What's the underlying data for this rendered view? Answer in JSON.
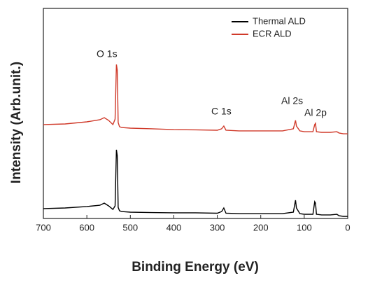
{
  "chart_data": {
    "type": "line",
    "x_label": "Binding Energy (eV)",
    "y_label": "Intensity (Arb.unit.)",
    "x": [
      700,
      650,
      600,
      570,
      560,
      550,
      540,
      535,
      532,
      530,
      528,
      525,
      520,
      500,
      450,
      400,
      350,
      300,
      290,
      285,
      280,
      250,
      200,
      150,
      125,
      120,
      118,
      110,
      100,
      80,
      76,
      74,
      72,
      60,
      40,
      25,
      20,
      10,
      0
    ],
    "series": [
      {
        "name": "Thermal ALD",
        "color": "#000000",
        "values": [
          4.7,
          5.0,
          5.7,
          6.3,
          7.3,
          6.0,
          4.3,
          6.0,
          32.7,
          30.0,
          5.3,
          3.7,
          3.3,
          3.0,
          2.8,
          2.7,
          2.7,
          2.5,
          3.3,
          5.0,
          2.5,
          2.3,
          2.3,
          2.3,
          3.0,
          8.7,
          5.0,
          2.3,
          2.0,
          2.0,
          8.0,
          7.3,
          2.0,
          1.7,
          1.7,
          2.0,
          1.3,
          1.0,
          1.0
        ]
      },
      {
        "name": "ECR ALD",
        "color": "#d03a2a",
        "values": [
          44.7,
          45.0,
          46.0,
          47.0,
          48.0,
          46.7,
          44.7,
          47.3,
          73.3,
          70.7,
          45.7,
          43.7,
          43.3,
          43.0,
          42.7,
          42.3,
          42.2,
          42.0,
          42.7,
          44.0,
          42.0,
          41.7,
          41.7,
          41.7,
          42.7,
          46.7,
          44.0,
          41.7,
          41.3,
          41.3,
          44.7,
          45.3,
          41.3,
          41.0,
          41.0,
          41.3,
          40.7,
          40.3,
          40.3
        ]
      }
    ],
    "annotations": [
      "O 1s",
      "C 1s",
      "Al 2s",
      "Al 2p"
    ],
    "xlim": [
      700,
      0
    ],
    "xticks": [
      700,
      600,
      500,
      400,
      300,
      200,
      100,
      0
    ],
    "ylim": [
      0,
      100
    ],
    "legend": "upper right"
  }
}
